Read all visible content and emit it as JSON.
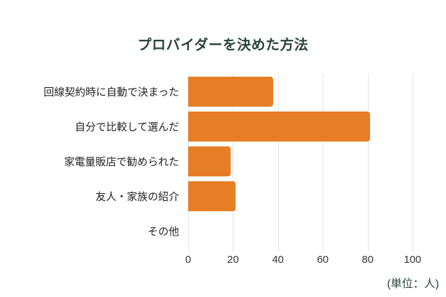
{
  "chart": {
    "title": "プロバイダーを決めた方法",
    "unit_label": "(単位：人)",
    "colors": {
      "bar": "#e67e26",
      "title": "#2b443a",
      "label": "#222222",
      "tick": "#333333",
      "grid": "#e4e4e4"
    }
  },
  "chart_data": {
    "type": "bar",
    "orientation": "horizontal",
    "title": "プロバイダーを決めた方法",
    "categories": [
      "回線契約時に自動で決まった",
      "自分で比較して選んだ",
      "家電量販店で勧められた",
      "友人・家族の紹介",
      "その他"
    ],
    "values": [
      38,
      81,
      19,
      21,
      0
    ],
    "xlabel": "(単位：人)",
    "ylabel": "",
    "xlim": [
      0,
      100
    ],
    "xticks": [
      0,
      20,
      40,
      60,
      80,
      100
    ],
    "grid": true,
    "legend": false
  }
}
